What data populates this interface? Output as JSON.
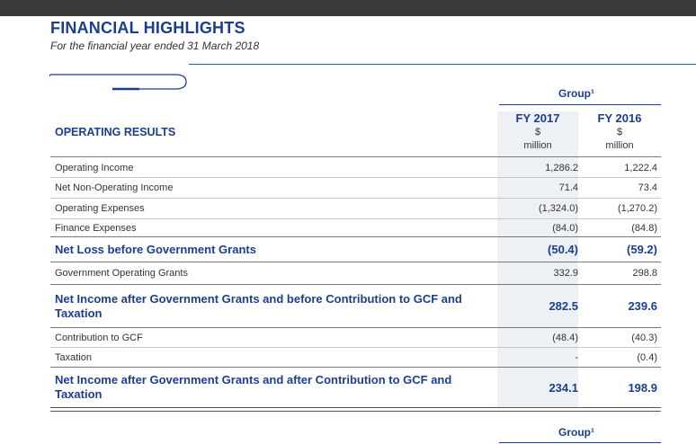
{
  "header": {
    "title": "FINANCIAL HIGHLIGHTS",
    "subtitle": "For the financial year ended 31 March 2018"
  },
  "table": {
    "group_label": "Group¹",
    "section_label": "OPERATING RESULTS",
    "columns": [
      {
        "year": "FY 2017",
        "currency": "$",
        "unit": "million"
      },
      {
        "year": "FY 2016",
        "currency": "$",
        "unit": "million"
      }
    ],
    "rows": [
      {
        "label": "Operating Income",
        "fy2017": "1,286.2",
        "fy2016": "1,222.4"
      },
      {
        "label": "Net Non-Operating Income",
        "fy2017": "71.4",
        "fy2016": "73.4"
      },
      {
        "label": "Operating Expenses",
        "fy2017": "(1,324.0)",
        "fy2016": "(1,270.2)"
      },
      {
        "label": "Finance Expenses",
        "fy2017": "(84.0)",
        "fy2016": "(84.8)"
      },
      {
        "label": "Net Loss before Government Grants",
        "fy2017": "(50.4)",
        "fy2016": "(59.2)"
      },
      {
        "label": "Government Operating Grants",
        "fy2017": "332.9",
        "fy2016": "298.8"
      },
      {
        "label": "Net Income after Government Grants and before Contribution to GCF and Taxation",
        "fy2017": "282.5",
        "fy2016": "239.6"
      },
      {
        "label": "Contribution to GCF",
        "fy2017": "(48.4)",
        "fy2016": "(40.3)"
      },
      {
        "label": "Taxation",
        "fy2017": "-",
        "fy2016": "(0.4)"
      },
      {
        "label": "Net Income after Government Grants and after Contribution to GCF and Taxation",
        "fy2017": "234.1",
        "fy2016": "198.9"
      }
    ],
    "next_group_label": "Group¹"
  }
}
